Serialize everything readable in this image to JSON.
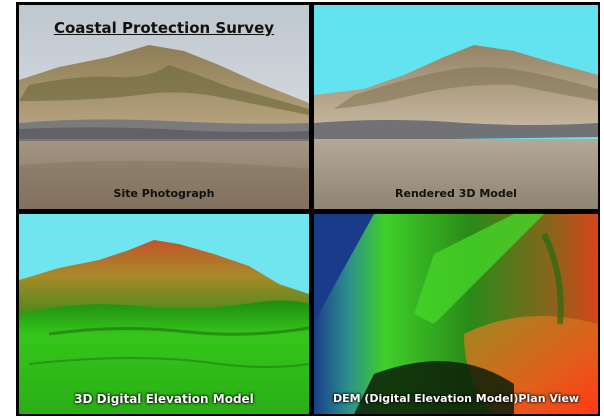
{
  "figure": {
    "title": "Coastal Protection Survey",
    "panels": [
      {
        "caption": "Site Photograph"
      },
      {
        "caption": "Rendered 3D Model"
      },
      {
        "caption": "3D Digital Elevation Model"
      },
      {
        "caption": "DEM  (Digital Elevation Model)Plan View"
      }
    ]
  },
  "colors": {
    "border": "#000000",
    "sky_photo": "#cfd6dc",
    "sky_render": "#63e2f0",
    "dem_low": "#25c414",
    "dem_high": "#c7512a"
  }
}
